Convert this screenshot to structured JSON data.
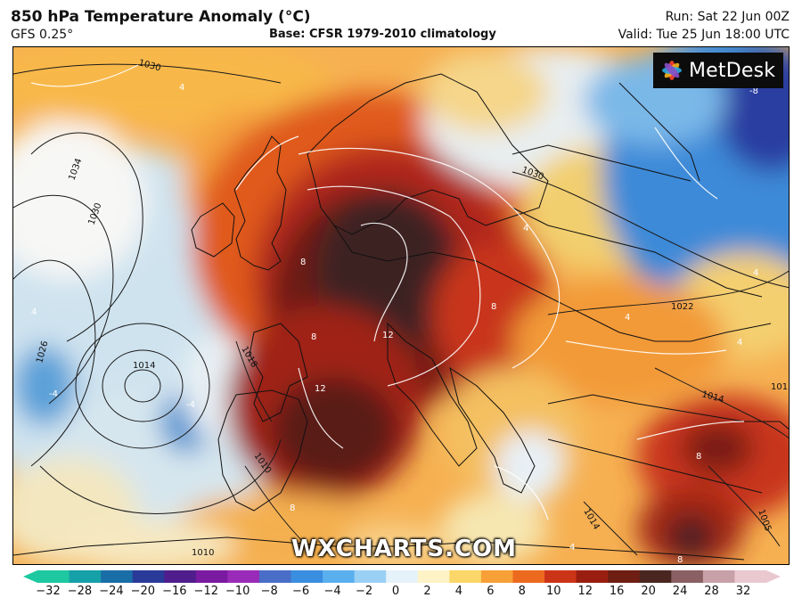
{
  "header": {
    "title": "850 hPa Temperature Anomaly (°C)",
    "model": "GFS 0.25°",
    "base": "Base: CFSR 1979-2010 climatology",
    "run": "Run: Sat 22 Jun 00Z",
    "valid": "Valid: Tue 25 Jun 18:00 UTC"
  },
  "logo": {
    "text": "MetDesk",
    "icon": "metdesk-logo-icon"
  },
  "watermark": "WXCHARTS.COM",
  "colorbar": {
    "ticks": [
      "−32",
      "−28",
      "−24",
      "−20",
      "−16",
      "−12",
      "−10",
      "−8",
      "−6",
      "−4",
      "−2",
      "0",
      "2",
      "4",
      "6",
      "8",
      "10",
      "12",
      "16",
      "20",
      "24",
      "28",
      "32"
    ],
    "colors": [
      "#1ec8a0",
      "#16a0a8",
      "#1a6ea8",
      "#2a3a98",
      "#501e8c",
      "#7a1aa0",
      "#9a2ab8",
      "#4a6ec8",
      "#3a8ee0",
      "#5ab0ee",
      "#9ad0f4",
      "#e6f2fa",
      "#fdf3c6",
      "#fbd668",
      "#f8a038",
      "#ec6a1e",
      "#cc3418",
      "#9a1e10",
      "#6e1e12",
      "#4a2620",
      "#8a6064",
      "#c8a0a8",
      "#eac8d0"
    ]
  },
  "isobar_labels": [
    "1030",
    "1034",
    "1030",
    "1026",
    "1014",
    "1018",
    "1010",
    "1030",
    "1022",
    "1014",
    "1005",
    "1014",
    "1010",
    "101"
  ],
  "anomaly_labels": [
    "12",
    "12",
    "8",
    "8",
    "8",
    "8",
    "8",
    "-4",
    "-4",
    "-8",
    "4",
    "4",
    "4",
    "4",
    "4",
    "4",
    "4",
    "8"
  ]
}
